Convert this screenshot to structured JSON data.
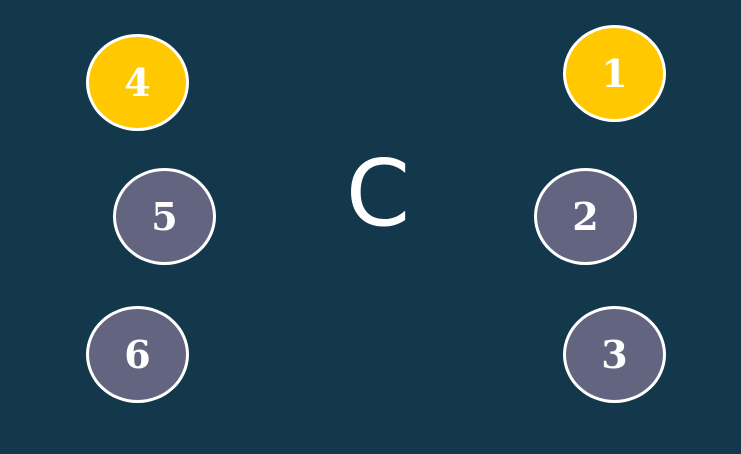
{
  "colors": {
    "background": "#13374b",
    "highlight": "#ffc800",
    "default": "#636580",
    "border": "#ffffff",
    "text": "#ffffff"
  },
  "center_label": "C",
  "nodes": [
    {
      "label": "1",
      "state": "highlight"
    },
    {
      "label": "2",
      "state": "default"
    },
    {
      "label": "3",
      "state": "default"
    },
    {
      "label": "4",
      "state": "highlight"
    },
    {
      "label": "5",
      "state": "default"
    },
    {
      "label": "6",
      "state": "default"
    }
  ]
}
